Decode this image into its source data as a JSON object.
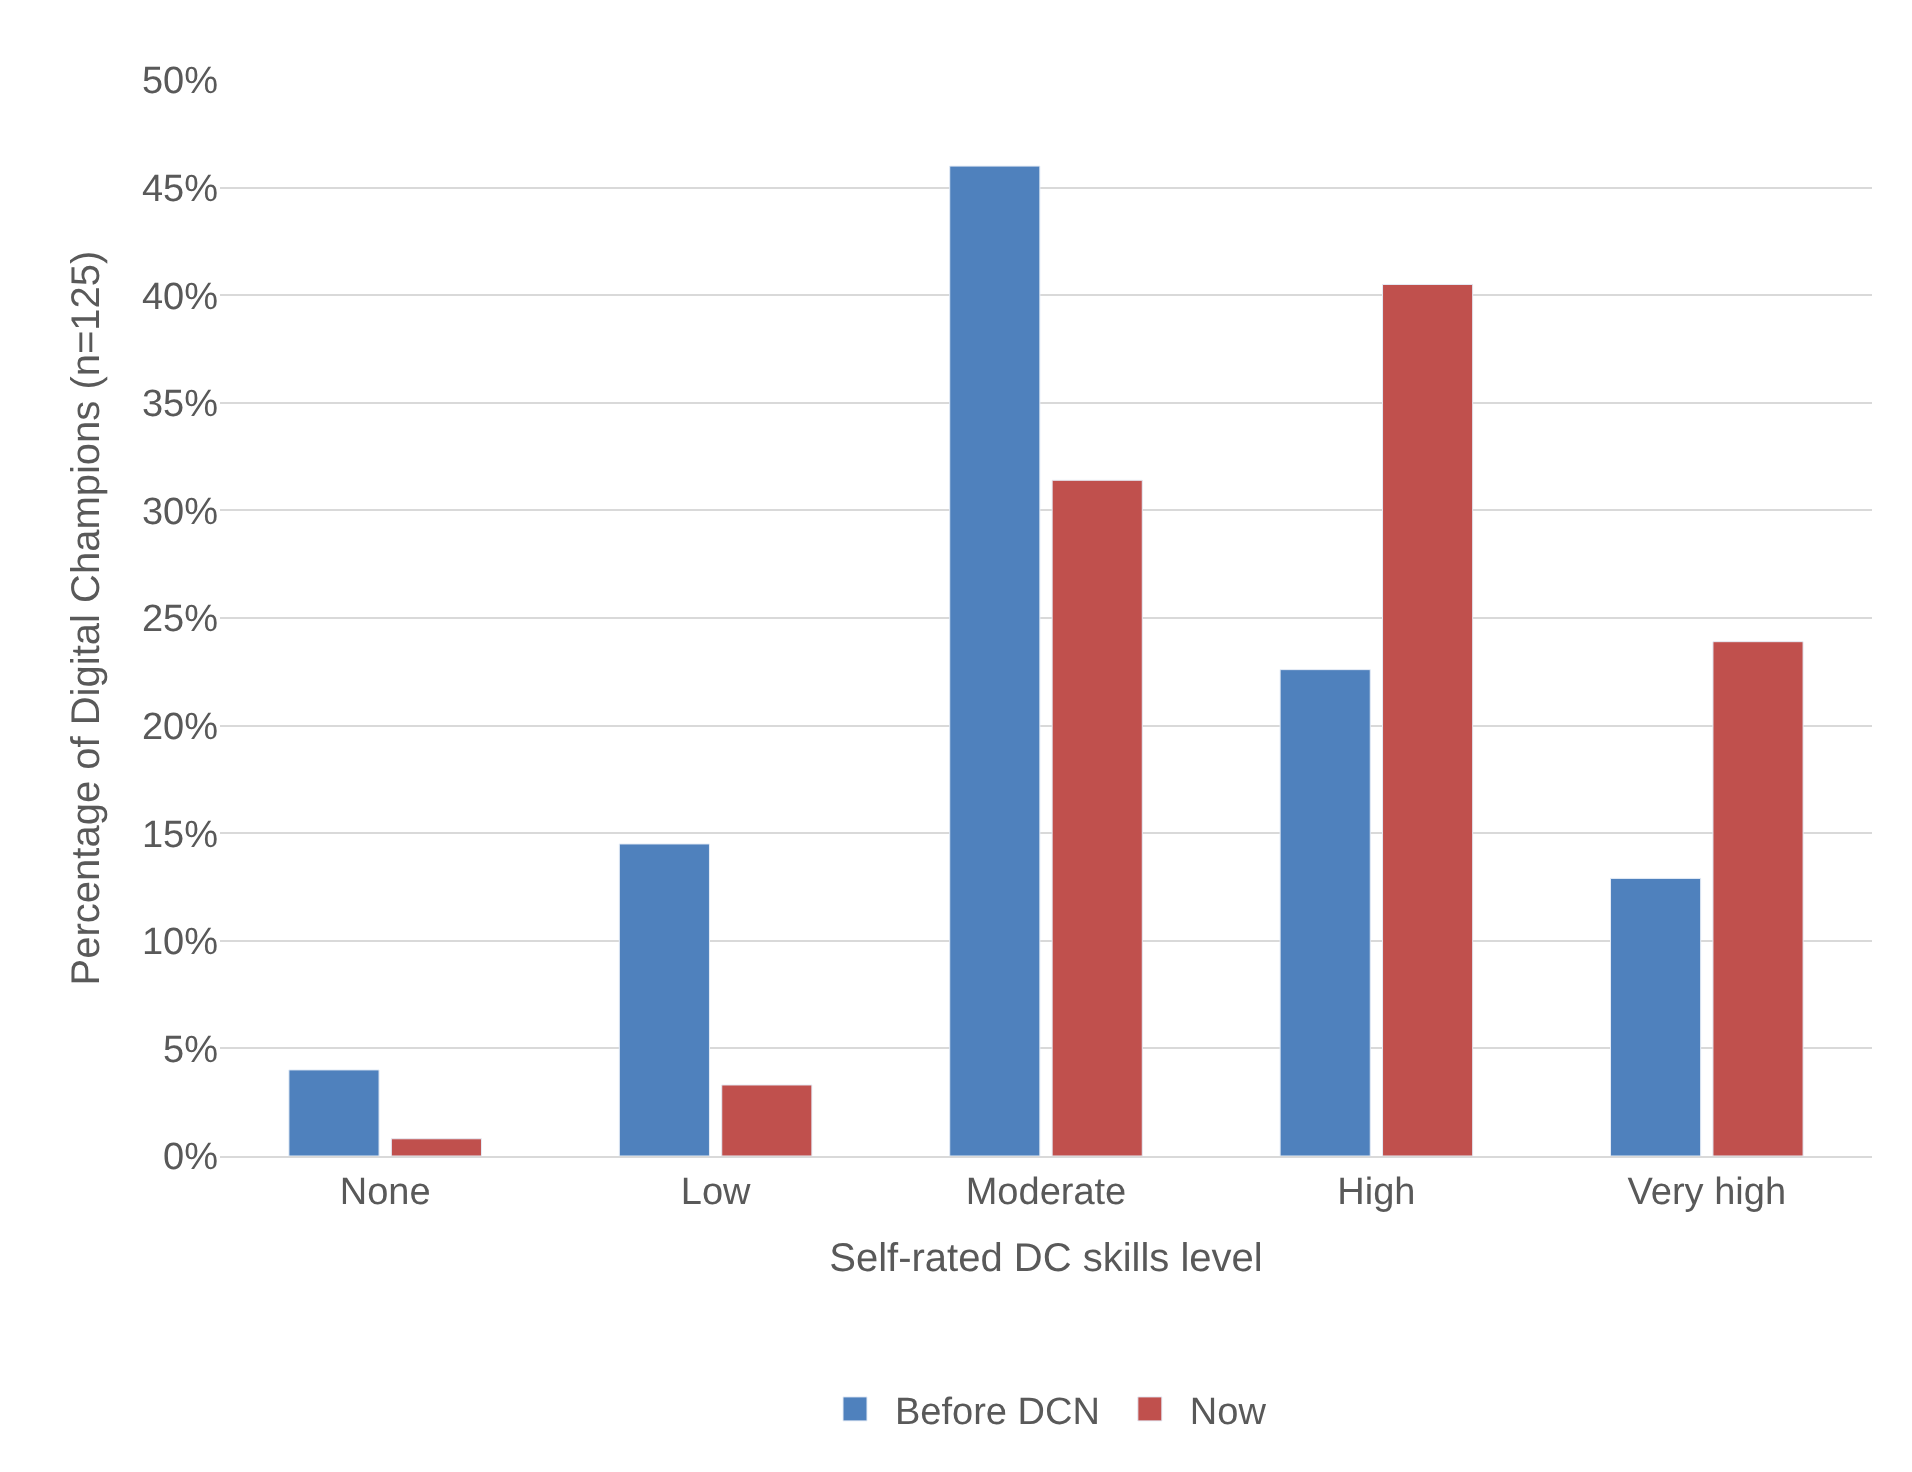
{
  "chart_data": {
    "type": "bar",
    "xlabel": "Self-rated DC skills level",
    "ylabel": "Percentage of Digital Champions (n=125)",
    "categories": [
      "None",
      "Low",
      "Moderate",
      "High",
      "Very high"
    ],
    "series": [
      {
        "name": "Before DCN",
        "color": "#4f81bd",
        "values": [
          4.0,
          14.5,
          46.0,
          22.6,
          12.9
        ]
      },
      {
        "name": "Now",
        "color": "#c0504d",
        "values": [
          0.8,
          3.3,
          31.4,
          40.5,
          23.9
        ]
      }
    ],
    "ylim": [
      0,
      50
    ],
    "yticks": [
      {
        "value": 0,
        "label": "0%"
      },
      {
        "value": 5,
        "label": "5%"
      },
      {
        "value": 10,
        "label": "10%"
      },
      {
        "value": 15,
        "label": "15%"
      },
      {
        "value": 20,
        "label": "20%"
      },
      {
        "value": 25,
        "label": "25%"
      },
      {
        "value": 30,
        "label": "30%"
      },
      {
        "value": 35,
        "label": "35%"
      },
      {
        "value": 40,
        "label": "40%"
      },
      {
        "value": 45,
        "label": "45%"
      },
      {
        "value": 50,
        "label": "50%"
      }
    ],
    "grid": "y",
    "legend": "bottom"
  }
}
